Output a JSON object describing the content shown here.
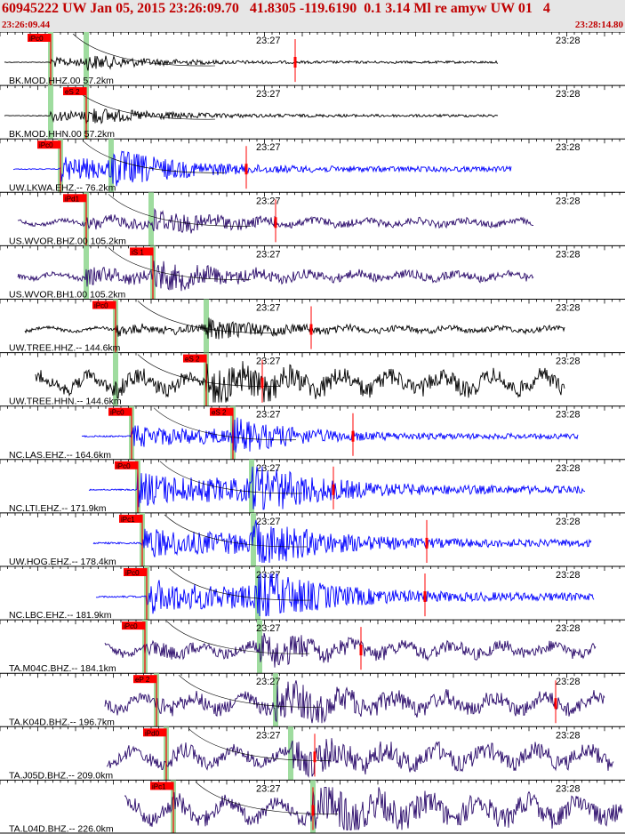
{
  "header": {
    "title": "60945222 UW Jan 05, 2015 23:26:09.70   41.8305 -119.6190  0.1 3.14 Ml re amyw UW 01   4",
    "start_time": "23:26:09.44",
    "end_time": "23:28:14.80"
  },
  "tick_labels": {
    "minute_27": "23:27",
    "minute_28": "23:28"
  },
  "colors": {
    "header_text": "#c00000",
    "header_bg": "#e6e6e6",
    "pick": "#ff0000",
    "phase_window": "#9fdc9f",
    "trace_blue": "#0000ff",
    "trace_purple": "#2b0b6b",
    "trace_black": "#000000"
  },
  "traces": [
    {
      "label": "BK.MOD.HHZ.00 57.2km",
      "color": "black",
      "picks": [
        "iPc0"
      ],
      "pick_note": ""
    },
    {
      "label": "BK.MOD.HHN.00 57.2km",
      "color": "black",
      "picks": [
        "eS 2"
      ],
      "pick_note": ""
    },
    {
      "label": "UW.LKWA.EHZ.-- 76.2km",
      "color": "blue",
      "picks": [
        "iPc0"
      ],
      "pick_note": ""
    },
    {
      "label": "US.WVOR.BHZ.00 105.2km",
      "color": "purple",
      "picks": [
        "iPd1"
      ],
      "pick_note": ""
    },
    {
      "label": "US.WVOR.BH1.00 105.2km",
      "color": "purple",
      "picks": [
        "iS 1"
      ],
      "pick_note": ""
    },
    {
      "label": "UW.TREE.HHZ.-- 144.6km",
      "color": "black",
      "picks": [
        "iPc0"
      ],
      "pick_note": ""
    },
    {
      "label": "UW.TREE.HHN.-- 144.6km",
      "color": "black",
      "picks": [
        "eS 2"
      ],
      "pick_note": ""
    },
    {
      "label": "NC.LAS.EHZ.-- 164.6km",
      "color": "blue",
      "picks": [
        "iPc0"
      ],
      "pick_note": "eS 2"
    },
    {
      "label": "NC.LTI.EHZ.-- 171.9km",
      "color": "blue",
      "picks": [
        "iPc0"
      ],
      "pick_note": ""
    },
    {
      "label": "UW.HOG.EHZ.-- 178.4km",
      "color": "blue",
      "picks": [
        "iPc1"
      ],
      "pick_note": ""
    },
    {
      "label": "NC.LBC.EHZ.-- 181.9km",
      "color": "blue",
      "picks": [
        "iPc0"
      ],
      "pick_note": ""
    },
    {
      "label": "TA.M04C.BHZ.-- 184.1km",
      "color": "purple",
      "picks": [
        "iPc0"
      ],
      "pick_note": ""
    },
    {
      "label": "TA.K04D.BHZ.-- 196.7km",
      "color": "purple",
      "picks": [
        "eP 2"
      ],
      "pick_note": ""
    },
    {
      "label": "TA.J05D.BHZ.-- 209.0km",
      "color": "purple",
      "picks": [
        "iPd0"
      ],
      "pick_note": ""
    },
    {
      "label": "TA.L04D.BHZ.-- 226.0km",
      "color": "purple",
      "picks": [
        "iPc1"
      ],
      "pick_note": ""
    }
  ]
}
